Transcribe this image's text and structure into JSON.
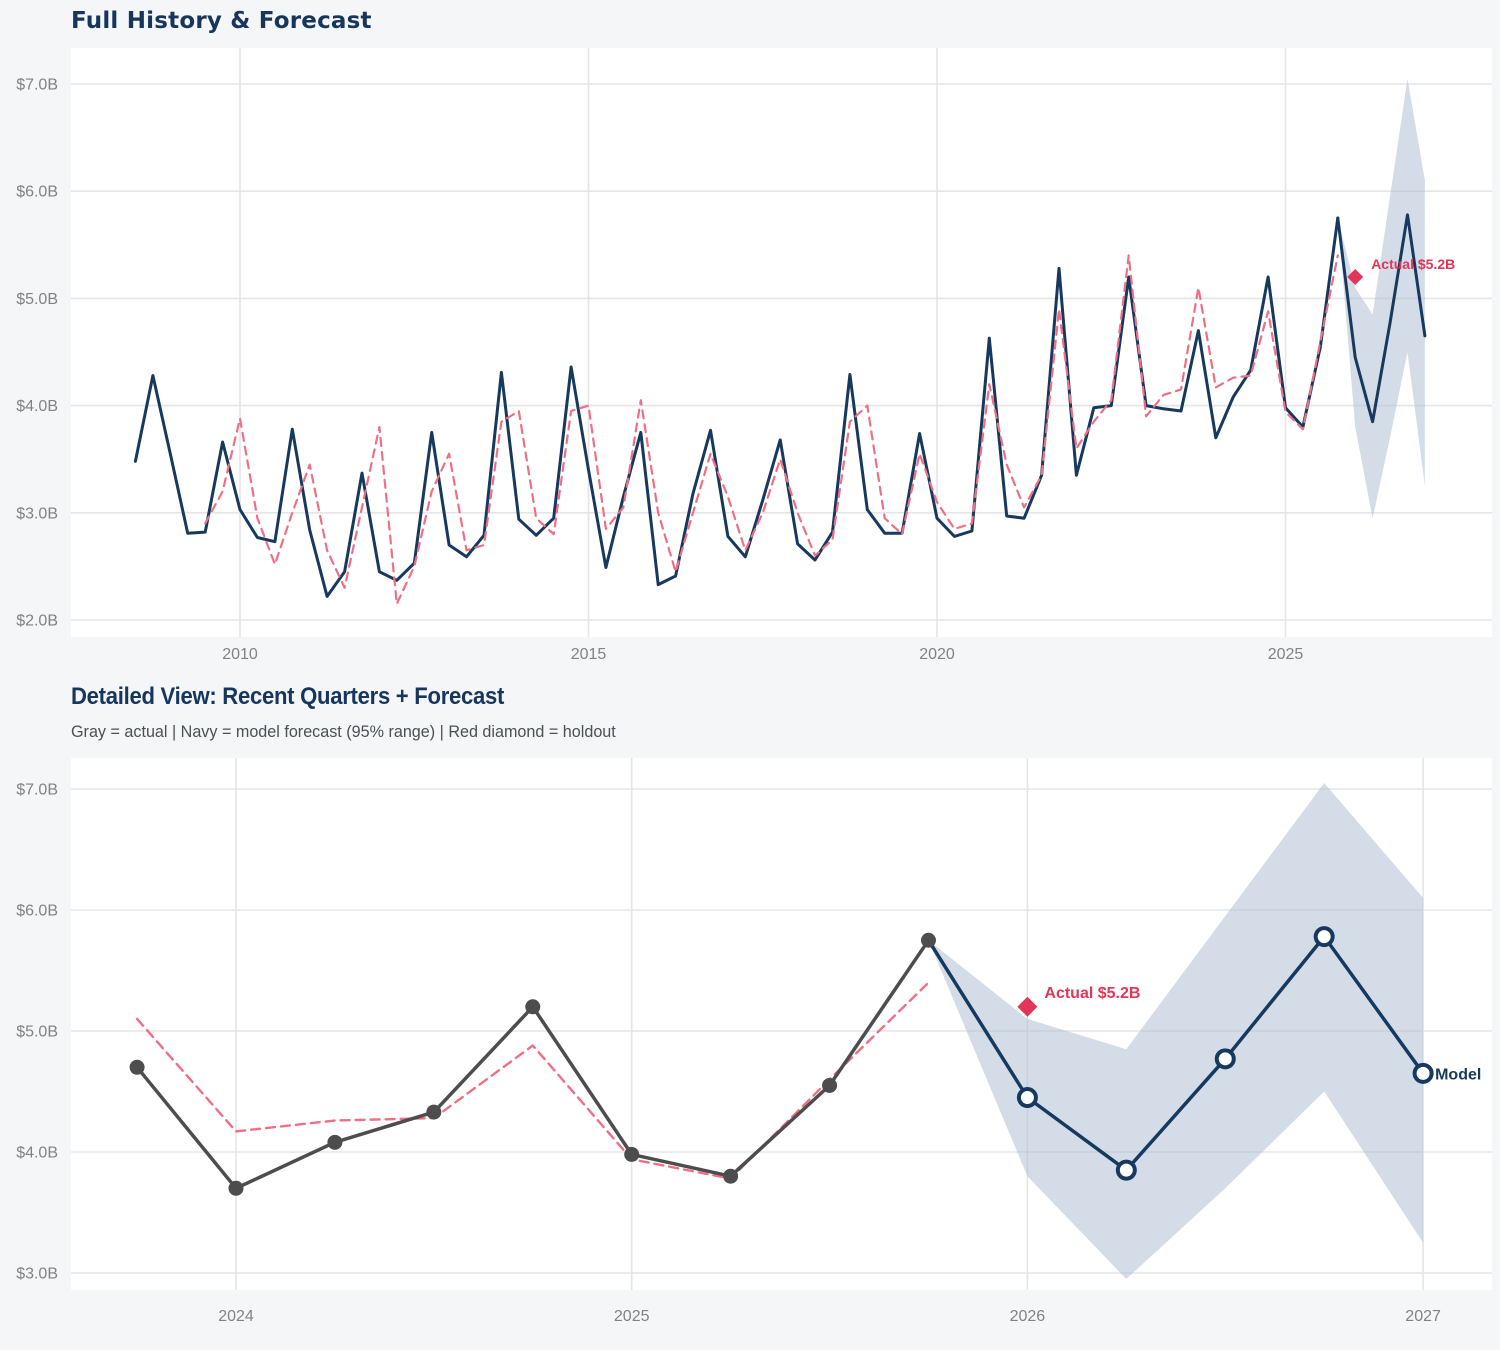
{
  "page": {
    "background": "#f5f6f8",
    "plot_background": "#ffffff",
    "gridline_color": "#e4e5e7"
  },
  "chart_data": [
    {
      "id": "full-history",
      "type": "line",
      "title": "Full History & Forecast",
      "x_ticks": [
        {
          "label": "2010",
          "t": 2010
        },
        {
          "label": "2015",
          "t": 2015
        },
        {
          "label": "2020",
          "t": 2020
        },
        {
          "label": "2025",
          "t": 2025
        }
      ],
      "y_ticks": [
        {
          "label": "$7.0B",
          "v": 7.0
        },
        {
          "label": "$6.0B",
          "v": 6.0
        },
        {
          "label": "$5.0B",
          "v": 5.0
        },
        {
          "label": "$4.0B",
          "v": 4.0
        },
        {
          "label": "$3.0B",
          "v": 3.0
        },
        {
          "label": "$2.0B",
          "v": 2.0
        }
      ],
      "units": "USD billions, quarterly",
      "series": [
        {
          "name": "actual",
          "color": "#17395e",
          "style": "solid",
          "start": 2008.5,
          "step": 0.25,
          "values": [
            3.48,
            4.28,
            3.55,
            2.81,
            2.82,
            3.66,
            3.03,
            2.77,
            2.73,
            3.78,
            2.84,
            2.22,
            2.45,
            3.37,
            2.45,
            2.37,
            2.53,
            3.75,
            2.7,
            2.59,
            2.79,
            4.31,
            2.94,
            2.79,
            2.95,
            4.36,
            3.4,
            2.49,
            3.15,
            3.75,
            2.33,
            2.41,
            3.18,
            3.77,
            2.78,
            2.59,
            3.12,
            3.68,
            2.71,
            2.56,
            2.82,
            4.29,
            3.03,
            2.81,
            2.81,
            3.74,
            2.95,
            2.78,
            2.83,
            4.63,
            2.97,
            2.95,
            3.35,
            5.28,
            3.35,
            3.98,
            4.0,
            5.2,
            4.0,
            3.97,
            3.95,
            4.7,
            3.7,
            4.08,
            4.33,
            5.2,
            3.98,
            3.8,
            4.55,
            5.75
          ]
        },
        {
          "name": "forecast",
          "color": "#17395e",
          "style": "solid",
          "start": 2025.75,
          "step": 0.25,
          "values": [
            5.75,
            4.45,
            3.85,
            4.77,
            5.78,
            4.65
          ]
        },
        {
          "name": "fitted",
          "color": "#ee7086",
          "style": "dashed",
          "start": 2009.5,
          "step": 0.25,
          "values": [
            2.9,
            3.2,
            3.88,
            2.95,
            2.52,
            3.0,
            3.45,
            2.65,
            2.3,
            3.05,
            3.8,
            2.15,
            2.5,
            3.2,
            3.55,
            2.65,
            2.7,
            3.85,
            3.95,
            2.95,
            2.8,
            3.95,
            4.0,
            2.85,
            3.05,
            4.05,
            3.0,
            2.45,
            3.0,
            3.55,
            3.15,
            2.65,
            3.0,
            3.5,
            3.0,
            2.6,
            2.75,
            3.85,
            4.0,
            2.95,
            2.8,
            3.55,
            3.1,
            2.85,
            2.9,
            4.2,
            3.45,
            3.05,
            3.35,
            4.9,
            3.6,
            3.85,
            4.05,
            5.4,
            3.9,
            4.1,
            4.15,
            5.1,
            4.17,
            4.26,
            4.28,
            4.88,
            3.94,
            3.78,
            4.6,
            5.4
          ]
        }
      ],
      "band": {
        "start": 2025.75,
        "step": 0.25,
        "color": "#aabccf",
        "upper": [
          5.75,
          5.1,
          4.85,
          5.95,
          7.05,
          6.1
        ],
        "lower": [
          5.75,
          3.8,
          2.95,
          3.7,
          4.5,
          3.25
        ]
      },
      "holdout": {
        "t": 2026.0,
        "v": 5.2,
        "label": "Actual $5.2B",
        "color": "#e23558"
      }
    },
    {
      "id": "detailed",
      "type": "line",
      "title": "Detailed View: Recent Quarters + Forecast",
      "subtitle": "Gray = actual  |  Navy = model forecast (95% range)  |  Red diamond = holdout",
      "x_ticks": [
        {
          "label": "2024",
          "t": 2024
        },
        {
          "label": "2025",
          "t": 2025
        },
        {
          "label": "2026",
          "t": 2026
        },
        {
          "label": "2027",
          "t": 2027
        }
      ],
      "y_ticks": [
        {
          "label": "$7.0B",
          "v": 7.0
        },
        {
          "label": "$6.0B",
          "v": 6.0
        },
        {
          "label": "$5.0B",
          "v": 5.0
        },
        {
          "label": "$4.0B",
          "v": 4.0
        },
        {
          "label": "$3.0B",
          "v": 3.0
        }
      ],
      "units": "USD billions, quarterly",
      "series": [
        {
          "name": "fitted",
          "color": "#ee7086",
          "style": "dashed",
          "start": 2023.75,
          "step": 0.25,
          "values": [
            5.1,
            4.17,
            4.26,
            4.28,
            4.88,
            3.94,
            3.78,
            4.6,
            5.4
          ]
        },
        {
          "name": "actual",
          "color": "#4d4d4d",
          "style": "solid",
          "markers": "dot",
          "start": 2023.75,
          "step": 0.25,
          "values": [
            4.7,
            3.7,
            4.08,
            4.33,
            5.2,
            3.98,
            3.8,
            4.55,
            5.75
          ]
        },
        {
          "name": "forecast",
          "color": "#17395e",
          "style": "solid",
          "markers": "open-circle",
          "marker_skip_first": true,
          "start": 2025.75,
          "step": 0.25,
          "values": [
            5.75,
            4.45,
            3.85,
            4.77,
            5.78,
            4.65
          ],
          "end_label": "Model"
        }
      ],
      "band": {
        "start": 2025.75,
        "step": 0.25,
        "color": "#aabccf",
        "upper": [
          5.75,
          5.1,
          4.85,
          5.95,
          7.05,
          6.1
        ],
        "lower": [
          5.75,
          3.8,
          2.95,
          3.7,
          4.5,
          3.25
        ]
      },
      "holdout": {
        "t": 2026.0,
        "v": 5.2,
        "label": "Actual $5.2B",
        "color": "#e23558"
      }
    }
  ]
}
